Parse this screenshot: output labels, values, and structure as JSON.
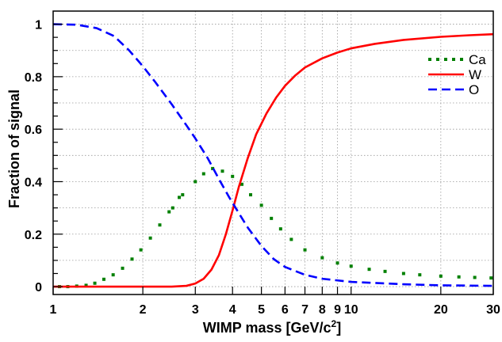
{
  "chart_data": {
    "type": "line",
    "xscale": "log",
    "xlim": [
      1,
      30
    ],
    "ylim": [
      -0.03,
      1.05
    ],
    "xlabel_main": "WIMP mass [GeV/c",
    "xlabel_sup": "2",
    "xlabel_end": "]",
    "ylabel": "Fraction of signal",
    "grid": true,
    "legend_position": "top-right",
    "x_ticks": [
      {
        "value": 1,
        "label": "1"
      },
      {
        "value": 2,
        "label": "2"
      },
      {
        "value": 3,
        "label": "3"
      },
      {
        "value": 4,
        "label": "4"
      },
      {
        "value": 5,
        "label": "5"
      },
      {
        "value": 6,
        "label": "6"
      },
      {
        "value": 7,
        "label": "7"
      },
      {
        "value": 8,
        "label": "8"
      },
      {
        "value": 9,
        "label": "9"
      },
      {
        "value": 10,
        "label": "10"
      },
      {
        "value": 20,
        "label": "20"
      },
      {
        "value": 30,
        "label": "30"
      }
    ],
    "y_ticks": [
      {
        "value": 0,
        "label": "0"
      },
      {
        "value": 0.2,
        "label": "0.2"
      },
      {
        "value": 0.4,
        "label": "0.4"
      },
      {
        "value": 0.6,
        "label": "0.6"
      },
      {
        "value": 0.8,
        "label": "0.8"
      },
      {
        "value": 1,
        "label": "1"
      }
    ],
    "series": [
      {
        "name": "Ca",
        "style": "dotted",
        "color": "#008000",
        "points": [
          [
            1.05,
            0.0
          ],
          [
            1.12,
            0.0
          ],
          [
            1.2,
            0.002
          ],
          [
            1.29,
            0.005
          ],
          [
            1.38,
            0.013
          ],
          [
            1.48,
            0.028
          ],
          [
            1.59,
            0.045
          ],
          [
            1.71,
            0.07
          ],
          [
            1.84,
            0.105
          ],
          [
            1.97,
            0.14
          ],
          [
            2.12,
            0.185
          ],
          [
            2.28,
            0.235
          ],
          [
            2.45,
            0.285
          ],
          [
            2.52,
            0.3
          ],
          [
            2.65,
            0.34
          ],
          [
            2.72,
            0.35
          ],
          [
            3.0,
            0.4
          ],
          [
            3.2,
            0.43
          ],
          [
            3.43,
            0.45
          ],
          [
            3.7,
            0.44
          ],
          [
            4.0,
            0.42
          ],
          [
            4.3,
            0.39
          ],
          [
            4.6,
            0.35
          ],
          [
            5.0,
            0.31
          ],
          [
            5.4,
            0.26
          ],
          [
            5.8,
            0.22
          ],
          [
            6.3,
            0.18
          ],
          [
            7.0,
            0.14
          ],
          [
            8.0,
            0.11
          ],
          [
            9.0,
            0.09
          ],
          [
            10.0,
            0.078
          ],
          [
            11.5,
            0.066
          ],
          [
            13.0,
            0.058
          ],
          [
            15.0,
            0.05
          ],
          [
            17.0,
            0.045
          ],
          [
            20.0,
            0.04
          ],
          [
            23.0,
            0.037
          ],
          [
            26.0,
            0.035
          ],
          [
            29.5,
            0.033
          ]
        ]
      },
      {
        "name": "W",
        "style": "solid",
        "color": "#ff0000",
        "points": [
          [
            1.0,
            0.0
          ],
          [
            2.5,
            0.0
          ],
          [
            2.8,
            0.003
          ],
          [
            3.0,
            0.012
          ],
          [
            3.2,
            0.03
          ],
          [
            3.4,
            0.065
          ],
          [
            3.6,
            0.12
          ],
          [
            3.8,
            0.2
          ],
          [
            4.0,
            0.29
          ],
          [
            4.2,
            0.38
          ],
          [
            4.5,
            0.49
          ],
          [
            4.8,
            0.58
          ],
          [
            5.2,
            0.66
          ],
          [
            5.6,
            0.72
          ],
          [
            6.0,
            0.765
          ],
          [
            6.5,
            0.805
          ],
          [
            7.0,
            0.835
          ],
          [
            8.0,
            0.87
          ],
          [
            9.0,
            0.892
          ],
          [
            10.0,
            0.908
          ],
          [
            12.0,
            0.925
          ],
          [
            15.0,
            0.94
          ],
          [
            20.0,
            0.952
          ],
          [
            25.0,
            0.958
          ],
          [
            30.0,
            0.962
          ]
        ]
      },
      {
        "name": "O",
        "style": "dashed",
        "color": "#0000ff",
        "points": [
          [
            1.0,
            1.0
          ],
          [
            1.2,
            0.998
          ],
          [
            1.4,
            0.985
          ],
          [
            1.6,
            0.955
          ],
          [
            1.8,
            0.9
          ],
          [
            2.0,
            0.84
          ],
          [
            2.2,
            0.78
          ],
          [
            2.5,
            0.695
          ],
          [
            2.8,
            0.615
          ],
          [
            3.0,
            0.565
          ],
          [
            3.3,
            0.49
          ],
          [
            3.6,
            0.41
          ],
          [
            3.9,
            0.34
          ],
          [
            4.2,
            0.28
          ],
          [
            4.5,
            0.225
          ],
          [
            5.0,
            0.155
          ],
          [
            5.5,
            0.105
          ],
          [
            6.0,
            0.075
          ],
          [
            7.0,
            0.045
          ],
          [
            8.0,
            0.03
          ],
          [
            10.0,
            0.018
          ],
          [
            15.0,
            0.009
          ],
          [
            20.0,
            0.005
          ],
          [
            30.0,
            0.003
          ]
        ]
      }
    ]
  }
}
